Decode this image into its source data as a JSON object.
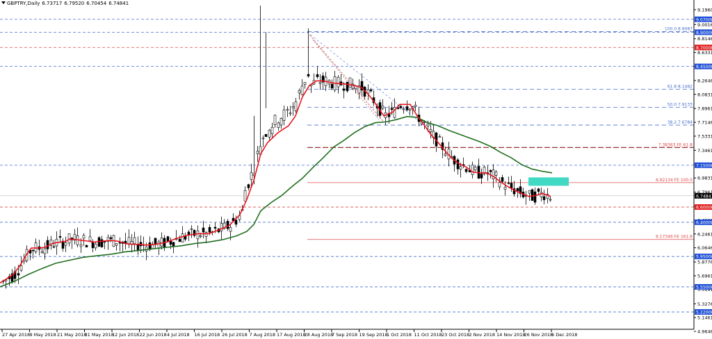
{
  "header": {
    "symbol": "GBPTRY,Daily",
    "open": "6.73717",
    "high": "6.79520",
    "low": "6.70454",
    "close": "6.74841"
  },
  "colors": {
    "candle_up": "#ffffff",
    "candle_down": "#000000",
    "ma_fast": "#e8141e",
    "ma_slow": "#1e6e1e",
    "hline_blue": "#4a6fd1",
    "hline_red": "#e04848",
    "box": "#40d9c4",
    "badge_blue": "#1f4fd6",
    "badge_red": "#e01f1f",
    "badge_black": "#000000",
    "grid": "#c8c8c8"
  },
  "chart_data": {
    "type": "candlestick",
    "title": "GBPTRY,Daily",
    "ylim": [
      4.9646,
      9.2576
    ],
    "y_ticks": [
      "9.19600",
      "9.00160",
      "8.81460",
      "8.63310",
      "8.44940",
      "8.26460",
      "8.08310",
      "7.89610",
      "7.71460",
      "7.53310",
      "7.34610",
      "7.16510",
      "6.98310",
      "6.79610",
      "6.61110",
      "6.42680",
      "6.24610",
      "6.06460",
      "5.87760",
      "5.69610",
      "5.51910",
      "5.32760",
      "5.14610",
      "4.96460"
    ],
    "x_labels": [
      "27 Apr 2018",
      "9 May 2018",
      "21 May 2018",
      "31 May 2018",
      "12 Jun 2018",
      "22 Jun 2018",
      "4 Jul 2018",
      "16 Jul 2018",
      "26 Jul 2018",
      "7 Aug 2018",
      "17 Aug 2018",
      "28 Aug 2018",
      "7 Sep 2018",
      "19 Sep 2018",
      "1 Oct 2018",
      "11 Oct 2018",
      "23 Oct 2018",
      "2 Nov 2018",
      "14 Nov 2018",
      "26 Nov 2018",
      "6 Dec 2018"
    ],
    "current_price": "6.74841",
    "series_fast_ma": [
      [
        0,
        5.6
      ],
      [
        10,
        5.66
      ],
      [
        20,
        5.72
      ],
      [
        30,
        5.85
      ],
      [
        40,
        6.0
      ],
      [
        45,
        6.06
      ],
      [
        55,
        6.06
      ],
      [
        65,
        6.07
      ],
      [
        75,
        6.12
      ],
      [
        80,
        6.13
      ],
      [
        95,
        6.15
      ],
      [
        100,
        6.18
      ],
      [
        110,
        6.17
      ],
      [
        120,
        6.16
      ],
      [
        135,
        6.14
      ],
      [
        145,
        6.15
      ],
      [
        160,
        6.16
      ],
      [
        170,
        6.15
      ],
      [
        180,
        6.12
      ],
      [
        190,
        6.11
      ],
      [
        200,
        6.11
      ],
      [
        210,
        6.1
      ],
      [
        225,
        6.11
      ],
      [
        240,
        6.14
      ],
      [
        255,
        6.19
      ],
      [
        270,
        6.23
      ],
      [
        285,
        6.25
      ],
      [
        300,
        6.25
      ],
      [
        315,
        6.3
      ],
      [
        330,
        6.36
      ],
      [
        345,
        6.5
      ],
      [
        355,
        6.7
      ],
      [
        365,
        6.95
      ],
      [
        375,
        7.3
      ],
      [
        385,
        7.45
      ],
      [
        400,
        7.58
      ],
      [
        415,
        7.67
      ],
      [
        425,
        7.8
      ],
      [
        435,
        8.05
      ],
      [
        445,
        8.2
      ],
      [
        455,
        8.26
      ],
      [
        465,
        8.26
      ],
      [
        480,
        8.23
      ],
      [
        495,
        8.22
      ],
      [
        510,
        8.2
      ],
      [
        520,
        8.17
      ],
      [
        530,
        8.08
      ],
      [
        540,
        7.96
      ],
      [
        552,
        7.8
      ],
      [
        565,
        7.85
      ],
      [
        575,
        7.95
      ],
      [
        590,
        7.95
      ],
      [
        600,
        7.8
      ],
      [
        610,
        7.68
      ],
      [
        620,
        7.55
      ],
      [
        630,
        7.45
      ],
      [
        640,
        7.34
      ],
      [
        650,
        7.24
      ],
      [
        660,
        7.17
      ],
      [
        670,
        7.13
      ],
      [
        680,
        7.06
      ],
      [
        690,
        7.05
      ],
      [
        700,
        7.05
      ],
      [
        710,
        7.0
      ],
      [
        720,
        6.93
      ],
      [
        730,
        6.87
      ],
      [
        740,
        6.82
      ],
      [
        750,
        6.78
      ],
      [
        760,
        6.74
      ],
      [
        770,
        6.75
      ],
      [
        780,
        6.78
      ],
      [
        792,
        6.74
      ]
    ],
    "series_slow_ma": [
      [
        0,
        5.55
      ],
      [
        20,
        5.62
      ],
      [
        40,
        5.71
      ],
      [
        60,
        5.79
      ],
      [
        80,
        5.86
      ],
      [
        100,
        5.9
      ],
      [
        120,
        5.94
      ],
      [
        140,
        5.96
      ],
      [
        160,
        5.98
      ],
      [
        180,
        6.01
      ],
      [
        200,
        6.03
      ],
      [
        220,
        6.05
      ],
      [
        240,
        6.07
      ],
      [
        260,
        6.09
      ],
      [
        280,
        6.12
      ],
      [
        300,
        6.14
      ],
      [
        320,
        6.17
      ],
      [
        340,
        6.22
      ],
      [
        355,
        6.28
      ],
      [
        365,
        6.37
      ],
      [
        375,
        6.55
      ],
      [
        390,
        6.66
      ],
      [
        405,
        6.75
      ],
      [
        420,
        6.87
      ],
      [
        435,
        6.98
      ],
      [
        450,
        7.12
      ],
      [
        465,
        7.25
      ],
      [
        480,
        7.39
      ],
      [
        495,
        7.48
      ],
      [
        510,
        7.58
      ],
      [
        525,
        7.66
      ],
      [
        540,
        7.71
      ],
      [
        555,
        7.72
      ],
      [
        570,
        7.75
      ],
      [
        585,
        7.79
      ],
      [
        600,
        7.78
      ],
      [
        615,
        7.71
      ],
      [
        630,
        7.67
      ],
      [
        645,
        7.61
      ],
      [
        660,
        7.56
      ],
      [
        675,
        7.51
      ],
      [
        690,
        7.46
      ],
      [
        705,
        7.4
      ],
      [
        720,
        7.32
      ],
      [
        735,
        7.25
      ],
      [
        750,
        7.16
      ],
      [
        765,
        7.1
      ],
      [
        780,
        7.07
      ],
      [
        794,
        7.05
      ]
    ],
    "horizontal_levels": [
      {
        "price": 9.07,
        "label": "9.07000",
        "color": "blue",
        "dashed": true
      },
      {
        "price": 8.9,
        "label": "8.90000",
        "color": "blue",
        "dashed": true
      },
      {
        "price": 8.7,
        "label": "8.70000",
        "color": "red",
        "dashed": true
      },
      {
        "price": 8.45,
        "label": "8.45000",
        "color": "blue",
        "dashed": true
      },
      {
        "price": 7.15,
        "label": "7.15000",
        "color": "blue",
        "dashed": true
      },
      {
        "price": 6.6,
        "label": "6.60000",
        "color": "red",
        "dashed": true
      },
      {
        "price": 6.4,
        "label": "6.40000",
        "color": "blue",
        "dashed": true
      },
      {
        "price": 5.95,
        "label": "5.95000",
        "color": "blue",
        "dashed": true
      },
      {
        "price": 5.55,
        "label": "5.55000",
        "color": "blue",
        "dashed": true
      },
      {
        "price": 5.22,
        "label": "5.22000",
        "color": "blue",
        "dashed": true
      }
    ],
    "fibonacci": [
      {
        "price": 8.9087,
        "label": "100.0  8.9087"
      },
      {
        "price": 8.1482,
        "label": "61.8  8.1482"
      },
      {
        "price": 7.9133,
        "label": "50.0  7.9133"
      },
      {
        "price": 7.6784,
        "label": "38.2  7.6784"
      }
    ],
    "fib_expansion": [
      {
        "price": 7.38363,
        "label": "7.38363  FE 61.8",
        "dashed": true
      },
      {
        "price": 6.92134,
        "label": "6.92134  FE 100.0",
        "dashed": false
      },
      {
        "price": 6.17346,
        "label": "6.17346  FE 161.8",
        "dashed": false
      }
    ]
  }
}
